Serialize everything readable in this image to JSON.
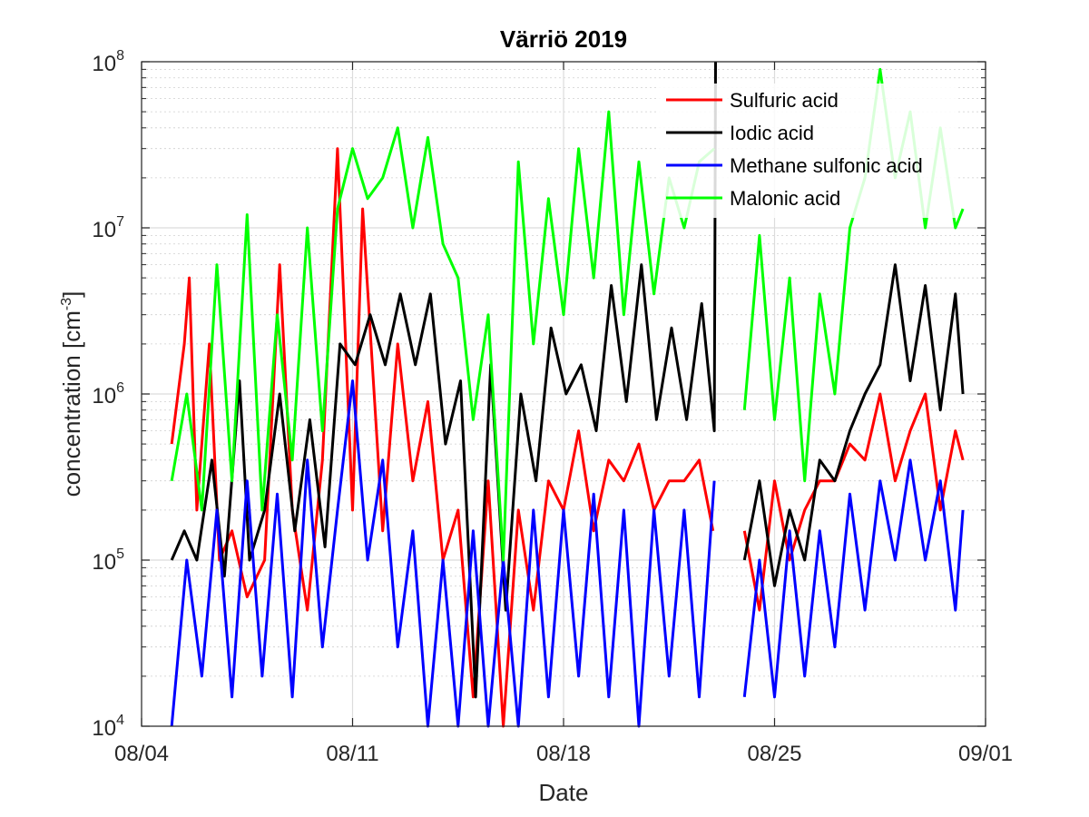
{
  "chart_data": {
    "type": "line",
    "title": "Värriö 2019",
    "xlabel": "Date",
    "ylabel": "concentration [cm",
    "ylabel_sup": "-3",
    "ylabel_close": "]",
    "y_scale": "log",
    "ylim": [
      10000,
      100000000
    ],
    "y_ticks": [
      {
        "value": 10000,
        "base": "10",
        "exp": "4"
      },
      {
        "value": 100000,
        "base": "10",
        "exp": "5"
      },
      {
        "value": 1000000,
        "base": "10",
        "exp": "6"
      },
      {
        "value": 10000000,
        "base": "10",
        "exp": "7"
      },
      {
        "value": 100000000,
        "base": "10",
        "exp": "8"
      }
    ],
    "xlim": [
      "2019-08-04",
      "2019-09-01"
    ],
    "x_ticks": [
      {
        "date": "2019-08-04",
        "label": "08/04"
      },
      {
        "date": "2019-08-11",
        "label": "08/11"
      },
      {
        "date": "2019-08-18",
        "label": "08/18"
      },
      {
        "date": "2019-08-25",
        "label": "08/25"
      },
      {
        "date": "2019-09-01",
        "label": "09/01"
      }
    ],
    "grid": true,
    "legend_position": "top-right",
    "series": [
      {
        "name": "Sulfuric acid",
        "color": "#ff0000",
        "x": [
          "2019-08-05T00:00",
          "2019-08-05T10:00",
          "2019-08-05T14:00",
          "2019-08-05T20:00",
          "2019-08-06T06:00",
          "2019-08-06T14:00",
          "2019-08-07T00:00",
          "2019-08-07T12:00",
          "2019-08-08T02:00",
          "2019-08-08T14:00",
          "2019-08-09T00:00",
          "2019-08-09T12:00",
          "2019-08-10T00:00",
          "2019-08-10T12:00",
          "2019-08-11T00:00",
          "2019-08-11T08:00",
          "2019-08-12T00:00",
          "2019-08-12T12:00",
          "2019-08-13T00:00",
          "2019-08-13T12:00",
          "2019-08-14T00:00",
          "2019-08-14T12:00",
          "2019-08-15T00:00",
          "2019-08-15T12:00",
          "2019-08-16T00:00",
          "2019-08-16T12:00",
          "2019-08-17T00:00",
          "2019-08-17T12:00",
          "2019-08-18T00:00",
          "2019-08-18T12:00",
          "2019-08-19T00:00",
          "2019-08-19T12:00",
          "2019-08-20T00:00",
          "2019-08-20T12:00",
          "2019-08-21T00:00",
          "2019-08-21T12:00",
          "2019-08-22T00:00",
          "2019-08-22T12:00",
          "2019-08-22T23:00",
          null,
          "2019-08-24T00:00",
          "2019-08-24T12:00",
          "2019-08-25T00:00",
          "2019-08-25T12:00",
          "2019-08-26T00:00",
          "2019-08-26T12:00",
          "2019-08-27T00:00",
          "2019-08-27T12:00",
          "2019-08-28T00:00",
          "2019-08-28T12:00",
          "2019-08-29T00:00",
          "2019-08-29T12:00",
          "2019-08-30T00:00",
          "2019-08-30T12:00",
          "2019-08-31T00:00",
          "2019-08-31T06:00"
        ],
        "y": [
          500000,
          2000000,
          5000000,
          200000,
          2000000,
          100000,
          150000,
          60000,
          100000,
          6000000,
          200000,
          50000,
          400000,
          30000000,
          200000,
          13000000,
          150000,
          2000000,
          300000,
          900000,
          100000,
          200000,
          15000,
          300000,
          10000,
          200000,
          50000,
          300000,
          200000,
          600000,
          150000,
          400000,
          300000,
          500000,
          200000,
          300000,
          300000,
          400000,
          150000,
          null,
          150000,
          50000,
          300000,
          100000,
          200000,
          300000,
          300000,
          500000,
          400000,
          1000000,
          300000,
          600000,
          1000000,
          200000,
          600000,
          400000
        ]
      },
      {
        "name": "Iodic acid",
        "color": "#000000",
        "x": [
          "2019-08-05T00:00",
          "2019-08-05T10:00",
          "2019-08-05T20:00",
          "2019-08-06T08:00",
          "2019-08-06T18:00",
          "2019-08-07T06:00",
          "2019-08-07T14:00",
          "2019-08-08T02:00",
          "2019-08-08T14:00",
          "2019-08-09T02:00",
          "2019-08-09T14:00",
          "2019-08-10T02:00",
          "2019-08-10T14:00",
          "2019-08-11T02:00",
          "2019-08-11T14:00",
          "2019-08-12T02:00",
          "2019-08-12T14:00",
          "2019-08-13T02:00",
          "2019-08-13T14:00",
          "2019-08-14T02:00",
          "2019-08-14T14:00",
          "2019-08-15T02:00",
          "2019-08-15T14:00",
          "2019-08-16T02:00",
          "2019-08-16T14:00",
          "2019-08-17T02:00",
          "2019-08-17T14:00",
          "2019-08-18T02:00",
          "2019-08-18T14:00",
          "2019-08-19T02:00",
          "2019-08-19T14:00",
          "2019-08-20T02:00",
          "2019-08-20T14:00",
          "2019-08-21T02:00",
          "2019-08-21T14:00",
          "2019-08-22T02:00",
          "2019-08-22T14:00",
          "2019-08-23T00:00",
          "2019-08-23T01:00",
          null,
          "2019-08-24T00:00",
          "2019-08-24T12:00",
          "2019-08-25T00:00",
          "2019-08-25T12:00",
          "2019-08-26T00:00",
          "2019-08-26T12:00",
          "2019-08-27T00:00",
          "2019-08-27T12:00",
          "2019-08-28T00:00",
          "2019-08-28T12:00",
          "2019-08-29T00:00",
          "2019-08-29T12:00",
          "2019-08-30T00:00",
          "2019-08-30T12:00",
          "2019-08-31T00:00",
          "2019-08-31T06:00"
        ],
        "y": [
          100000,
          150000,
          100000,
          400000,
          80000,
          1200000,
          100000,
          200000,
          1000000,
          150000,
          700000,
          120000,
          2000000,
          1500000,
          3000000,
          1500000,
          4000000,
          1500000,
          4000000,
          500000,
          1200000,
          15000,
          1500000,
          50000,
          1000000,
          300000,
          2500000,
          1000000,
          1500000,
          600000,
          4500000,
          900000,
          6000000,
          700000,
          2500000,
          700000,
          3500000,
          600000,
          100000000,
          null,
          100000,
          300000,
          70000,
          200000,
          100000,
          400000,
          300000,
          600000,
          1000000,
          1500000,
          6000000,
          1200000,
          4500000,
          800000,
          4000000,
          1000000
        ]
      },
      {
        "name": "Methane sulfonic acid",
        "color": "#0000ff",
        "x": [
          "2019-08-05T00:00",
          "2019-08-05T12:00",
          "2019-08-06T00:00",
          "2019-08-06T12:00",
          "2019-08-07T00:00",
          "2019-08-07T12:00",
          "2019-08-08T00:00",
          "2019-08-08T12:00",
          "2019-08-09T00:00",
          "2019-08-09T12:00",
          "2019-08-10T00:00",
          "2019-08-10T12:00",
          "2019-08-11T00:00",
          "2019-08-11T12:00",
          "2019-08-12T00:00",
          "2019-08-12T12:00",
          "2019-08-13T00:00",
          "2019-08-13T12:00",
          "2019-08-14T00:00",
          "2019-08-14T12:00",
          "2019-08-15T00:00",
          "2019-08-15T12:00",
          "2019-08-16T00:00",
          "2019-08-16T12:00",
          "2019-08-17T00:00",
          "2019-08-17T12:00",
          "2019-08-18T00:00",
          "2019-08-18T12:00",
          "2019-08-19T00:00",
          "2019-08-19T12:00",
          "2019-08-20T00:00",
          "2019-08-20T12:00",
          "2019-08-21T00:00",
          "2019-08-21T12:00",
          "2019-08-22T00:00",
          "2019-08-22T12:00",
          "2019-08-23T00:00",
          null,
          "2019-08-24T00:00",
          "2019-08-24T12:00",
          "2019-08-25T00:00",
          "2019-08-25T12:00",
          "2019-08-26T00:00",
          "2019-08-26T12:00",
          "2019-08-27T00:00",
          "2019-08-27T12:00",
          "2019-08-28T00:00",
          "2019-08-28T12:00",
          "2019-08-29T00:00",
          "2019-08-29T12:00",
          "2019-08-30T00:00",
          "2019-08-30T12:00",
          "2019-08-31T00:00",
          "2019-08-31T06:00"
        ],
        "y": [
          10000,
          100000,
          20000,
          200000,
          15000,
          300000,
          20000,
          250000,
          15000,
          400000,
          30000,
          200000,
          1200000,
          100000,
          400000,
          30000,
          150000,
          10000,
          100000,
          10000,
          150000,
          10000,
          100000,
          10000,
          200000,
          15000,
          200000,
          20000,
          250000,
          15000,
          200000,
          10000,
          200000,
          20000,
          200000,
          15000,
          300000,
          null,
          15000,
          100000,
          15000,
          150000,
          20000,
          150000,
          30000,
          250000,
          50000,
          300000,
          100000,
          400000,
          100000,
          300000,
          50000,
          200000
        ]
      },
      {
        "name": "Malonic acid",
        "color": "#00ff00",
        "x": [
          "2019-08-05T00:00",
          "2019-08-05T12:00",
          "2019-08-06T00:00",
          "2019-08-06T12:00",
          "2019-08-07T00:00",
          "2019-08-07T12:00",
          "2019-08-08T00:00",
          "2019-08-08T12:00",
          "2019-08-09T00:00",
          "2019-08-09T12:00",
          "2019-08-10T00:00",
          "2019-08-10T12:00",
          "2019-08-11T00:00",
          "2019-08-11T12:00",
          "2019-08-12T00:00",
          "2019-08-12T12:00",
          "2019-08-13T00:00",
          "2019-08-13T12:00",
          "2019-08-14T00:00",
          "2019-08-14T12:00",
          "2019-08-15T00:00",
          "2019-08-15T12:00",
          "2019-08-16T00:00",
          "2019-08-16T12:00",
          "2019-08-17T00:00",
          "2019-08-17T12:00",
          "2019-08-18T00:00",
          "2019-08-18T12:00",
          "2019-08-19T00:00",
          "2019-08-19T12:00",
          "2019-08-20T00:00",
          "2019-08-20T12:00",
          "2019-08-21T00:00",
          "2019-08-21T12:00",
          "2019-08-22T00:00",
          "2019-08-22T12:00",
          "2019-08-23T00:00",
          null,
          "2019-08-24T00:00",
          "2019-08-24T12:00",
          "2019-08-25T00:00",
          "2019-08-25T12:00",
          "2019-08-26T00:00",
          "2019-08-26T12:00",
          "2019-08-27T00:00",
          "2019-08-27T12:00",
          "2019-08-28T00:00",
          "2019-08-28T12:00",
          "2019-08-29T00:00",
          "2019-08-29T12:00",
          "2019-08-30T00:00",
          "2019-08-30T12:00",
          "2019-08-31T00:00",
          "2019-08-31T06:00"
        ],
        "y": [
          300000,
          1000000,
          200000,
          6000000,
          300000,
          12000000,
          200000,
          3000000,
          400000,
          10000000,
          600000,
          13000000,
          30000000,
          15000000,
          20000000,
          40000000,
          10000000,
          35000000,
          8000000,
          5000000,
          700000,
          3000000,
          100000,
          25000000,
          2000000,
          15000000,
          3000000,
          30000000,
          5000000,
          50000000,
          3000000,
          25000000,
          4000000,
          20000000,
          10000000,
          25000000,
          30000000,
          null,
          800000,
          9000000,
          700000,
          5000000,
          300000,
          4000000,
          1000000,
          10000000,
          20000000,
          90000000,
          20000000,
          50000000,
          10000000,
          40000000,
          10000000,
          13000000
        ]
      }
    ]
  }
}
